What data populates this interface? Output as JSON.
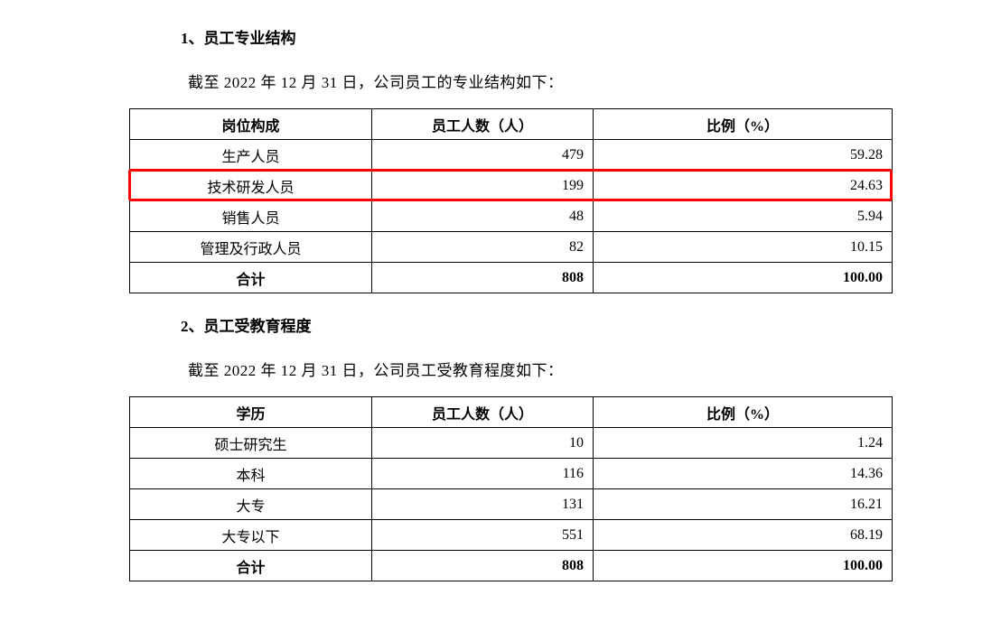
{
  "section1": {
    "heading": "1、员工专业结构",
    "body": "截至 2022 年 12 月 31 日，公司员工的专业结构如下：",
    "table": {
      "columns": [
        "岗位构成",
        "员工人数（人）",
        "比例（%）"
      ],
      "rows": [
        {
          "label": "生产人员",
          "count": "479",
          "pct": "59.28",
          "highlight": false
        },
        {
          "label": "技术研发人员",
          "count": "199",
          "pct": "24.63",
          "highlight": true
        },
        {
          "label": "销售人员",
          "count": "48",
          "pct": "5.94",
          "highlight": false
        },
        {
          "label": "管理及行政人员",
          "count": "82",
          "pct": "10.15",
          "highlight": false
        }
      ],
      "total": {
        "label": "合计",
        "count": "808",
        "pct": "100.00"
      }
    },
    "highlight_color": "#ff0000"
  },
  "section2": {
    "heading": "2、员工受教育程度",
    "body": "截至 2022 年 12 月 31 日，公司员工受教育程度如下：",
    "table": {
      "columns": [
        "学历",
        "员工人数（人）",
        "比例（%）"
      ],
      "rows": [
        {
          "label": "硕士研究生",
          "count": "10",
          "pct": "1.24"
        },
        {
          "label": "本科",
          "count": "116",
          "pct": "14.36"
        },
        {
          "label": "大专",
          "count": "131",
          "pct": "16.21"
        },
        {
          "label": "大专以下",
          "count": "551",
          "pct": "68.19"
        }
      ],
      "total": {
        "label": "合计",
        "count": "808",
        "pct": "100.00"
      }
    }
  }
}
